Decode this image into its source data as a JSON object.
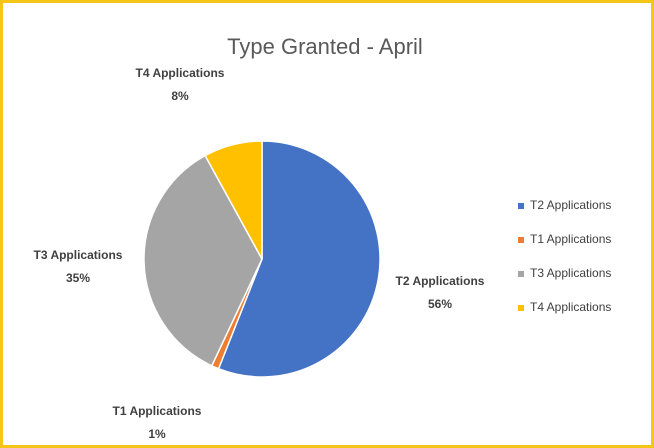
{
  "chart_data": {
    "type": "pie",
    "title": "Type Granted - April",
    "categories": [
      "T2 Applications",
      "T1 Applications",
      "T3 Applications",
      "T4 Applications"
    ],
    "values": [
      56,
      1,
      35,
      8
    ],
    "value_labels": [
      "56%",
      "1%",
      "35%",
      "8%"
    ],
    "colors": [
      "#4472c4",
      "#ed7d31",
      "#a5a5a5",
      "#ffc000"
    ],
    "legend": "right"
  }
}
